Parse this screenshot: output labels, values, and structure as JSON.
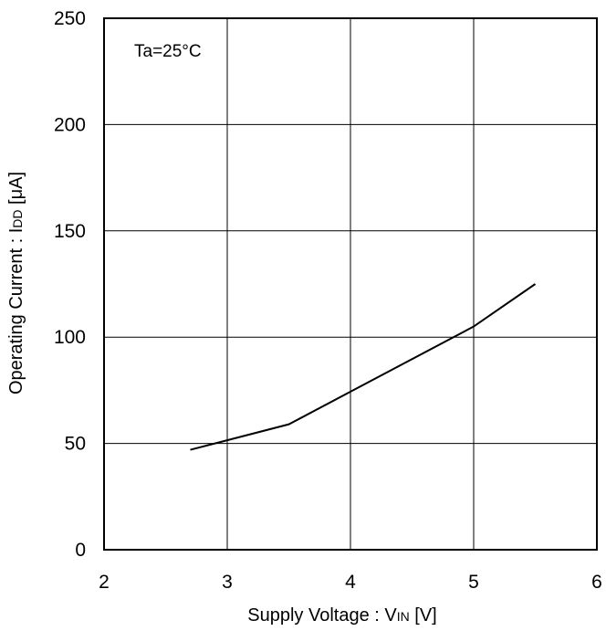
{
  "chart_data": {
    "type": "line",
    "xlabel": {
      "pre": "Supply Voltage : V",
      "sub": "IN",
      "post": " [V]"
    },
    "ylabel": {
      "pre": "Operating Current : I",
      "sub": "DD",
      "post": " [μA]"
    },
    "annotation": "Ta=25°C",
    "xlim": [
      2,
      6
    ],
    "ylim": [
      0,
      250
    ],
    "x_ticks": [
      2,
      3,
      4,
      5,
      6
    ],
    "y_ticks": [
      0,
      50,
      100,
      150,
      200,
      250
    ],
    "grid": true,
    "x_tick_labels": [
      "2",
      "3",
      "4",
      "5",
      "6"
    ],
    "y_tick_labels": [
      "0",
      "50",
      "100",
      "150",
      "200",
      "250"
    ],
    "series": [
      {
        "x": [
          2.7,
          3.5,
          5.0,
          5.5
        ],
        "y": [
          47,
          59,
          105,
          125
        ]
      }
    ]
  }
}
